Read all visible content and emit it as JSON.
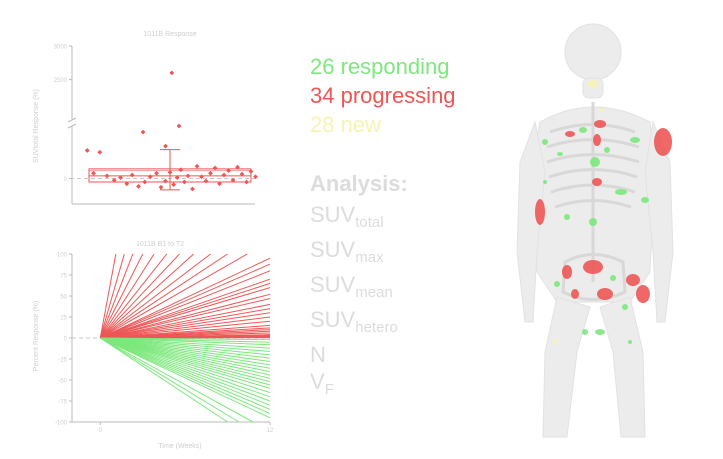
{
  "colors": {
    "responding": "#7de87d",
    "progressing": "#ee5656",
    "new": "#f7f3b3",
    "axis": "#bbbbbb",
    "text_light": "#cfcfcf",
    "analysis_text": "#dcdcdc",
    "reference_line": "#c8c8c8"
  },
  "counts": {
    "responding": "26 responding",
    "progressing": "34 progressing",
    "new": "28 new"
  },
  "analysis": {
    "heading": "Analysis:",
    "metrics": [
      {
        "base": "SUV",
        "sub": "total"
      },
      {
        "base": "SUV",
        "sub": "max"
      },
      {
        "base": "SUV",
        "sub": "mean"
      },
      {
        "base": "SUV",
        "sub": "hetero"
      },
      {
        "base": "N",
        "sub": ""
      },
      {
        "base": "V",
        "sub": "F"
      }
    ]
  },
  "chart_data": [
    {
      "type": "scatter",
      "subtype": "box-and-dot",
      "title": "1011B Response",
      "ylabel": "SUVtotal Response (%)",
      "xlabel": "",
      "ylim": [
        -200,
        3000
      ],
      "axis_break": [
        600,
        1900
      ],
      "y_ticks": [
        3000,
        2500,
        0
      ],
      "y_tick_labels": [
        "3000",
        "2500",
        "0"
      ],
      "reference_line": 0,
      "box": {
        "q1": -40,
        "median": 30,
        "q3": 110,
        "mean": 90,
        "whisker_low": -130,
        "whisker_high": 330
      },
      "points": [
        {
          "x": -0.92,
          "y": 320
        },
        {
          "x": -0.78,
          "y": 300
        },
        {
          "x": -0.85,
          "y": 60
        },
        {
          "x": -0.7,
          "y": 30
        },
        {
          "x": -0.62,
          "y": -20
        },
        {
          "x": -0.55,
          "y": 10
        },
        {
          "x": -0.48,
          "y": -60
        },
        {
          "x": -0.42,
          "y": 40
        },
        {
          "x": -0.35,
          "y": -90
        },
        {
          "x": -0.28,
          "y": -40
        },
        {
          "x": -0.22,
          "y": 20
        },
        {
          "x": -0.15,
          "y": 60
        },
        {
          "x": -0.1,
          "y": -100
        },
        {
          "x": -0.05,
          "y": -30
        },
        {
          "x": 0.0,
          "y": 70
        },
        {
          "x": 0.04,
          "y": -70
        },
        {
          "x": 0.08,
          "y": 10
        },
        {
          "x": 0.12,
          "y": 100
        },
        {
          "x": 0.16,
          "y": -40
        },
        {
          "x": 0.2,
          "y": 30
        },
        {
          "x": 0.25,
          "y": -120
        },
        {
          "x": 0.3,
          "y": 140
        },
        {
          "x": 0.35,
          "y": 20
        },
        {
          "x": 0.4,
          "y": -30
        },
        {
          "x": 0.45,
          "y": 60
        },
        {
          "x": 0.5,
          "y": 120
        },
        {
          "x": 0.55,
          "y": -60
        },
        {
          "x": 0.6,
          "y": 40
        },
        {
          "x": 0.65,
          "y": 90
        },
        {
          "x": 0.7,
          "y": -20
        },
        {
          "x": 0.75,
          "y": 130
        },
        {
          "x": 0.8,
          "y": 50
        },
        {
          "x": 0.85,
          "y": -40
        },
        {
          "x": 0.9,
          "y": 80
        },
        {
          "x": 0.95,
          "y": 20
        },
        {
          "x": -0.3,
          "y": 530
        },
        {
          "x": -0.05,
          "y": 370
        },
        {
          "x": 0.1,
          "y": 600
        },
        {
          "x": 0.02,
          "y": 2600
        }
      ]
    },
    {
      "type": "line",
      "subtype": "spaghetti",
      "title": "1011B B1 to T2",
      "xlabel": "Time (Weeks)",
      "ylabel": "Percent Response (%)",
      "xlim": [
        -2,
        12
      ],
      "ylim": [
        -100,
        100
      ],
      "x_ticks": [
        0,
        12
      ],
      "y_ticks": [
        100,
        75,
        50,
        25,
        0,
        -25,
        -50,
        -75,
        -100
      ],
      "reference_line": 0,
      "series": [
        {
          "group": "progressing",
          "x": [
            0,
            1.1
          ],
          "y": [
            0,
            100
          ]
        },
        {
          "group": "progressing",
          "x": [
            0,
            1.7
          ],
          "y": [
            0,
            100
          ]
        },
        {
          "group": "progressing",
          "x": [
            0,
            2.3
          ],
          "y": [
            0,
            100
          ]
        },
        {
          "group": "progressing",
          "x": [
            0,
            3.0
          ],
          "y": [
            0,
            100
          ]
        },
        {
          "group": "progressing",
          "x": [
            0,
            3.8
          ],
          "y": [
            0,
            100
          ]
        },
        {
          "group": "progressing",
          "x": [
            0,
            4.7
          ],
          "y": [
            0,
            100
          ]
        },
        {
          "group": "progressing",
          "x": [
            0,
            5.6
          ],
          "y": [
            0,
            100
          ]
        },
        {
          "group": "progressing",
          "x": [
            0,
            6.6
          ],
          "y": [
            0,
            100
          ]
        },
        {
          "group": "progressing",
          "x": [
            0,
            7.8
          ],
          "y": [
            0,
            100
          ]
        },
        {
          "group": "progressing",
          "x": [
            0,
            9.0
          ],
          "y": [
            0,
            100
          ]
        },
        {
          "group": "progressing",
          "x": [
            0,
            10.4
          ],
          "y": [
            0,
            100
          ]
        },
        {
          "group": "progressing",
          "x": [
            0,
            12
          ],
          "y": [
            0,
            95
          ]
        },
        {
          "group": "progressing",
          "x": [
            0,
            12
          ],
          "y": [
            0,
            88
          ]
        },
        {
          "group": "progressing",
          "x": [
            0,
            12
          ],
          "y": [
            0,
            80
          ]
        },
        {
          "group": "progressing",
          "x": [
            0,
            12
          ],
          "y": [
            0,
            70
          ]
        },
        {
          "group": "progressing",
          "x": [
            0,
            12
          ],
          "y": [
            0,
            65
          ]
        },
        {
          "group": "progressing",
          "x": [
            0,
            12
          ],
          "y": [
            0,
            60
          ]
        },
        {
          "group": "progressing",
          "x": [
            0,
            12
          ],
          "y": [
            0,
            52
          ]
        },
        {
          "group": "progressing",
          "x": [
            0,
            12
          ],
          "y": [
            0,
            47
          ]
        },
        {
          "group": "progressing",
          "x": [
            0,
            12
          ],
          "y": [
            0,
            40
          ]
        },
        {
          "group": "progressing",
          "x": [
            0,
            12
          ],
          "y": [
            0,
            35
          ]
        },
        {
          "group": "progressing",
          "x": [
            0,
            12
          ],
          "y": [
            0,
            30
          ]
        },
        {
          "group": "progressing",
          "x": [
            0,
            12
          ],
          "y": [
            0,
            25
          ]
        },
        {
          "group": "progressing",
          "x": [
            0,
            12
          ],
          "y": [
            0,
            20
          ]
        },
        {
          "group": "progressing",
          "x": [
            0,
            12
          ],
          "y": [
            0,
            15
          ]
        },
        {
          "group": "progressing",
          "x": [
            0,
            12
          ],
          "y": [
            0,
            12
          ]
        },
        {
          "group": "progressing",
          "x": [
            0,
            12
          ],
          "y": [
            0,
            10
          ]
        },
        {
          "group": "progressing",
          "x": [
            0,
            12
          ],
          "y": [
            0,
            8
          ]
        },
        {
          "group": "progressing",
          "x": [
            0,
            12
          ],
          "y": [
            0,
            6
          ]
        },
        {
          "group": "progressing",
          "x": [
            0,
            12
          ],
          "y": [
            0,
            4
          ]
        },
        {
          "group": "progressing",
          "x": [
            0,
            12
          ],
          "y": [
            0,
            3
          ]
        },
        {
          "group": "progressing",
          "x": [
            0,
            12
          ],
          "y": [
            0,
            2
          ]
        },
        {
          "group": "progressing",
          "x": [
            0,
            12
          ],
          "y": [
            0,
            1
          ]
        },
        {
          "group": "progressing",
          "x": [
            0,
            12
          ],
          "y": [
            0,
            0.5
          ]
        },
        {
          "group": "responding",
          "x": [
            0,
            12
          ],
          "y": [
            0,
            -2
          ]
        },
        {
          "group": "responding",
          "x": [
            0,
            12
          ],
          "y": [
            0,
            -5
          ]
        },
        {
          "group": "responding",
          "x": [
            0,
            12
          ],
          "y": [
            0,
            -8
          ]
        },
        {
          "group": "responding",
          "x": [
            0,
            12
          ],
          "y": [
            0,
            -12
          ]
        },
        {
          "group": "responding",
          "x": [
            0,
            12
          ],
          "y": [
            0,
            -16
          ]
        },
        {
          "group": "responding",
          "x": [
            0,
            12
          ],
          "y": [
            0,
            -20
          ]
        },
        {
          "group": "responding",
          "x": [
            0,
            12
          ],
          "y": [
            0,
            -24
          ]
        },
        {
          "group": "responding",
          "x": [
            0,
            12
          ],
          "y": [
            0,
            -28
          ]
        },
        {
          "group": "responding",
          "x": [
            0,
            12
          ],
          "y": [
            0,
            -32
          ]
        },
        {
          "group": "responding",
          "x": [
            0,
            12
          ],
          "y": [
            0,
            -36
          ]
        },
        {
          "group": "responding",
          "x": [
            0,
            12
          ],
          "y": [
            0,
            -40
          ]
        },
        {
          "group": "responding",
          "x": [
            0,
            12
          ],
          "y": [
            0,
            -44
          ]
        },
        {
          "group": "responding",
          "x": [
            0,
            12
          ],
          "y": [
            0,
            -48
          ]
        },
        {
          "group": "responding",
          "x": [
            0,
            12
          ],
          "y": [
            0,
            -52
          ]
        },
        {
          "group": "responding",
          "x": [
            0,
            12
          ],
          "y": [
            0,
            -56
          ]
        },
        {
          "group": "responding",
          "x": [
            0,
            12
          ],
          "y": [
            0,
            -60
          ]
        },
        {
          "group": "responding",
          "x": [
            0,
            12
          ],
          "y": [
            0,
            -65
          ]
        },
        {
          "group": "responding",
          "x": [
            0,
            12
          ],
          "y": [
            0,
            -70
          ]
        },
        {
          "group": "responding",
          "x": [
            0,
            12
          ],
          "y": [
            0,
            -75
          ]
        },
        {
          "group": "responding",
          "x": [
            0,
            12
          ],
          "y": [
            0,
            -80
          ]
        },
        {
          "group": "responding",
          "x": [
            0,
            12
          ],
          "y": [
            0,
            -85
          ]
        },
        {
          "group": "responding",
          "x": [
            0,
            12
          ],
          "y": [
            0,
            -90
          ]
        },
        {
          "group": "responding",
          "x": [
            0,
            12
          ],
          "y": [
            0,
            -95
          ]
        },
        {
          "group": "responding",
          "x": [
            0,
            10.8
          ],
          "y": [
            0,
            -100
          ]
        },
        {
          "group": "responding",
          "x": [
            0,
            9.8
          ],
          "y": [
            0,
            -100
          ]
        },
        {
          "group": "responding",
          "x": [
            0,
            9.0
          ],
          "y": [
            0,
            -100
          ]
        }
      ]
    }
  ],
  "skeleton": {
    "legend_colors": [
      "responding",
      "progressing",
      "new"
    ]
  }
}
